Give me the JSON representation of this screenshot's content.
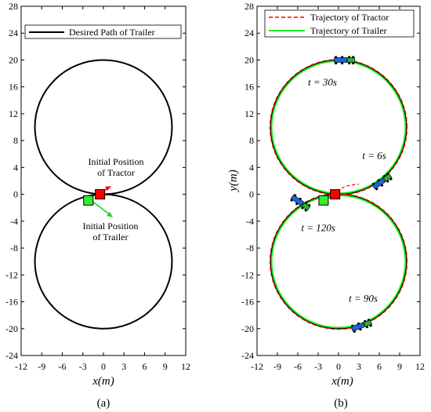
{
  "chart_data": [
    {
      "type": "line",
      "panel_label": "(a)",
      "xlabel": "x(m)",
      "ylabel": "",
      "xlim": [
        -12,
        12
      ],
      "ylim": [
        -24,
        28
      ],
      "xticks": [
        -12,
        -9,
        -6,
        -3,
        0,
        3,
        6,
        9,
        12
      ],
      "yticks": [
        -24,
        -20,
        -16,
        -12,
        -8,
        -4,
        0,
        4,
        8,
        12,
        16,
        20,
        24,
        28
      ],
      "grid": false,
      "legend_position": "top",
      "series": [
        {
          "name": "Desired Path of Trailer",
          "color": "#000000",
          "shape": "figure-eight",
          "circles": [
            {
              "center": [
                0,
                10
              ],
              "radius": 10
            },
            {
              "center": [
                0,
                -10
              ],
              "radius": 10
            }
          ]
        }
      ],
      "markers": [
        {
          "label_lines": [
            "Initial Position",
            "of Tractor"
          ],
          "x": -0.5,
          "y": 0,
          "color": "#ff0000"
        },
        {
          "label_lines": [
            "Initial Position",
            "of Trailer"
          ],
          "x": -2.2,
          "y": -0.9,
          "color": "#33ee33"
        }
      ]
    },
    {
      "type": "line",
      "panel_label": "(b)",
      "xlabel": "x(m)",
      "ylabel": "y(m)",
      "xlim": [
        -12,
        12
      ],
      "ylim": [
        -24,
        28
      ],
      "xticks": [
        -12,
        -9,
        -6,
        -3,
        0,
        3,
        6,
        9,
        12
      ],
      "yticks": [
        -24,
        -20,
        -16,
        -12,
        -8,
        -4,
        0,
        4,
        8,
        12,
        16,
        20,
        24,
        28
      ],
      "grid": false,
      "legend_position": "top-right",
      "series": [
        {
          "name": "Trajectory of Tractor",
          "color": "#ff0000",
          "style": "dashed"
        },
        {
          "name": "Trajectory of Trailer",
          "color": "#00ee00",
          "style": "solid"
        }
      ],
      "time_annotations": [
        {
          "label": "t = 30s",
          "x": -4.5,
          "y": 16.2
        },
        {
          "label": "t = 6s",
          "x": 3.5,
          "y": 5.3
        },
        {
          "label": "t = 120s",
          "x": -5.5,
          "y": -5.5
        },
        {
          "label": "t = 90s",
          "x": 1.5,
          "y": -16.0
        }
      ],
      "vehicles": [
        {
          "x": 1.0,
          "y": 20.0,
          "angle": 0
        },
        {
          "x": 6.5,
          "y": 2.0,
          "angle": -35
        },
        {
          "x": -5.5,
          "y": -1.3,
          "angle": 35
        },
        {
          "x": 3.5,
          "y": -19.5,
          "angle": -20
        }
      ],
      "markers": [
        {
          "x": -0.5,
          "y": 0,
          "color": "#ff0000"
        },
        {
          "x": -2.2,
          "y": -0.9,
          "color": "#33ee33"
        }
      ]
    }
  ]
}
